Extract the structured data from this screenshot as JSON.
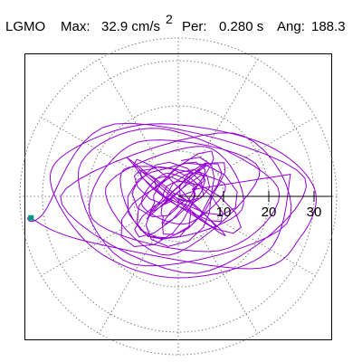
{
  "header": {
    "station": "LGMO",
    "max_label": "Max:",
    "max_value": "32.9 cm/s",
    "max_exp": "2",
    "per_label": "Per:",
    "per_value": "0.280 s",
    "ang_label": "Ang:",
    "ang_value": "188.3"
  },
  "chart_data": {
    "type": "polar-orbit",
    "r_ticks": [
      10,
      20,
      30
    ],
    "r_tick_labels": [
      "10",
      "20",
      "30"
    ],
    "r_max": 35,
    "radial_rings": [
      10,
      20,
      30,
      35
    ],
    "angular_grid_step_deg": 30,
    "max_accel": 32.9,
    "max_accel_unit": "cm/s2",
    "max_angle_deg": 188.3,
    "period_s": 0.28,
    "series": [
      {
        "color": "#9400d3",
        "description_points": [
          [
            0,
            0
          ],
          [
            4,
            2
          ],
          [
            -3,
            5
          ],
          [
            -8,
            -2
          ],
          [
            2,
            -6
          ],
          [
            10,
            3
          ],
          [
            -12,
            6
          ],
          [
            -6,
            -9
          ],
          [
            14,
            -3
          ],
          [
            6,
            11
          ],
          [
            -16,
            2
          ],
          [
            -2,
            -13
          ],
          [
            18,
            6
          ],
          [
            -9,
            12
          ],
          [
            -19,
            -5
          ],
          [
            9,
            -12
          ],
          [
            22,
            2
          ],
          [
            -4,
            15
          ],
          [
            -22,
            6
          ],
          [
            -10,
            -15
          ],
          [
            24,
            -6
          ],
          [
            12,
            14
          ],
          [
            -26,
            0
          ],
          [
            4,
            -17
          ],
          [
            28,
            4
          ],
          [
            -14,
            16
          ],
          [
            -30,
            -4
          ],
          [
            -32.5,
            -4.8
          ],
          [
            -20,
            -10
          ],
          [
            16,
            -16
          ],
          [
            27,
            -9
          ],
          [
            30,
            2
          ],
          [
            18,
            12
          ],
          [
            -6,
            16
          ],
          [
            -24,
            10
          ],
          [
            -28,
            2
          ],
          [
            -18,
            -12
          ],
          [
            0,
            -18
          ],
          [
            20,
            -12
          ],
          [
            25,
            6
          ]
        ]
      }
    ],
    "colors": {
      "orbit": "#9400d3",
      "max_marker": "#009688",
      "grid": "#7f7f7f",
      "axis": "#000000",
      "frame": "#000000"
    }
  }
}
